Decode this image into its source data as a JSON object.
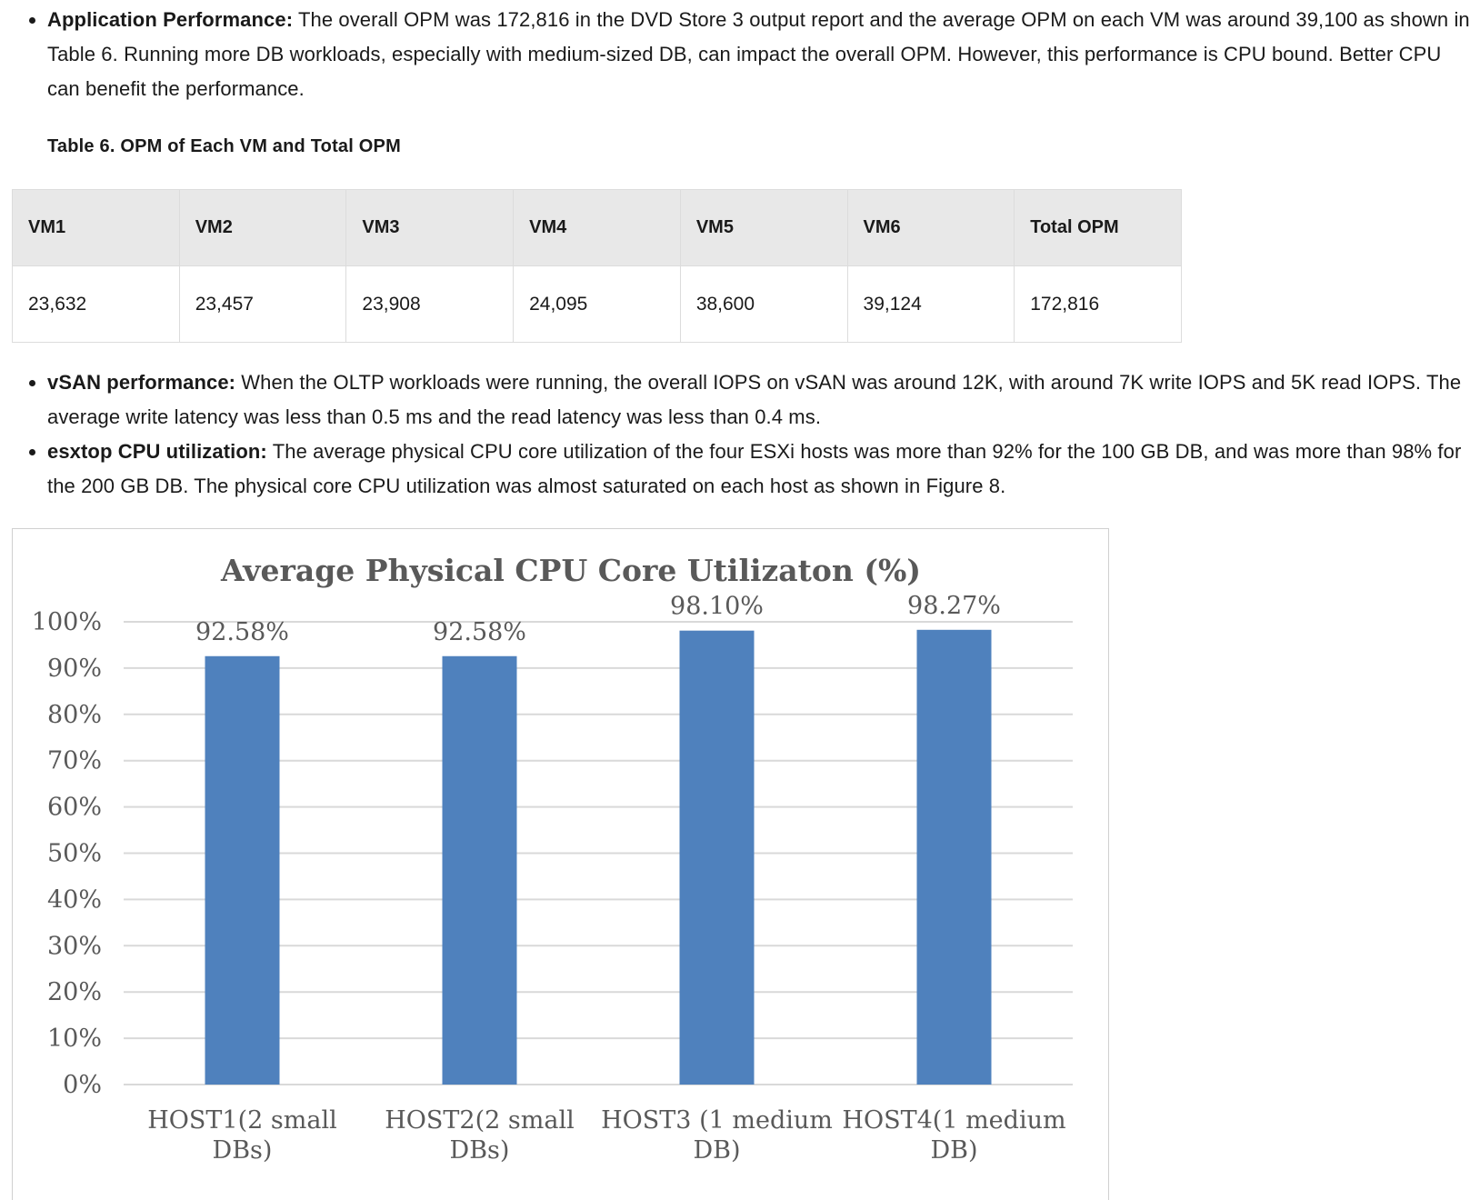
{
  "bullets_top": [
    {
      "label": "Application Performance:",
      "text": " The overall OPM was 172,816 in the DVD Store 3 output report and the average OPM on each VM was around 39,100 as shown in Table 6. Running more DB workloads, especially with medium-sized DB, can impact the overall OPM. However, this performance is CPU bound. Better CPU can benefit the performance."
    }
  ],
  "table": {
    "caption": "Table 6. OPM of Each VM and Total OPM",
    "headers": [
      "VM1",
      "VM2",
      "VM3",
      "VM4",
      "VM5",
      "VM6",
      "Total OPM"
    ],
    "rows": [
      [
        "23,632",
        "23,457",
        "23,908",
        "24,095",
        "38,600",
        "39,124",
        "172,816"
      ]
    ]
  },
  "bullets_mid": [
    {
      "label": "vSAN performance:",
      "text": " When the OLTP workloads were running, the overall IOPS on vSAN was around 12K, with around 7K write IOPS and 5K read IOPS. The average write latency was less than 0.5 ms and the read latency was less than 0.4 ms."
    },
    {
      "label": "esxtop CPU utilization:",
      "text": " The average physical CPU core utilization of the four ESXi hosts was more than 92% for the 100 GB DB, and was more than 98% for the 200 GB DB. The physical core CPU utilization was almost saturated on each host as shown in Figure 8."
    }
  ],
  "chart_data": {
    "type": "bar",
    "title": "Average Physical CPU Core Utilizaton (%)",
    "categories": [
      [
        "HOST1(2 small",
        "DBs)"
      ],
      [
        "HOST2(2 small",
        "DBs)"
      ],
      [
        "HOST3 (1 medium",
        "DB)"
      ],
      [
        "HOST4(1 medium",
        "DB)"
      ]
    ],
    "values": [
      92.58,
      92.58,
      98.1,
      98.27
    ],
    "data_labels": [
      "92.58%",
      "92.58%",
      "98.10%",
      "98.27%"
    ],
    "yticks": [
      "0%",
      "10%",
      "20%",
      "30%",
      "40%",
      "50%",
      "60%",
      "70%",
      "80%",
      "90%",
      "100%"
    ],
    "ylim": [
      0,
      100
    ],
    "grid": true,
    "legend": "none",
    "bar_color": "#4f81bd",
    "grid_color": "#d9d9d9",
    "text_color": "#595959"
  }
}
